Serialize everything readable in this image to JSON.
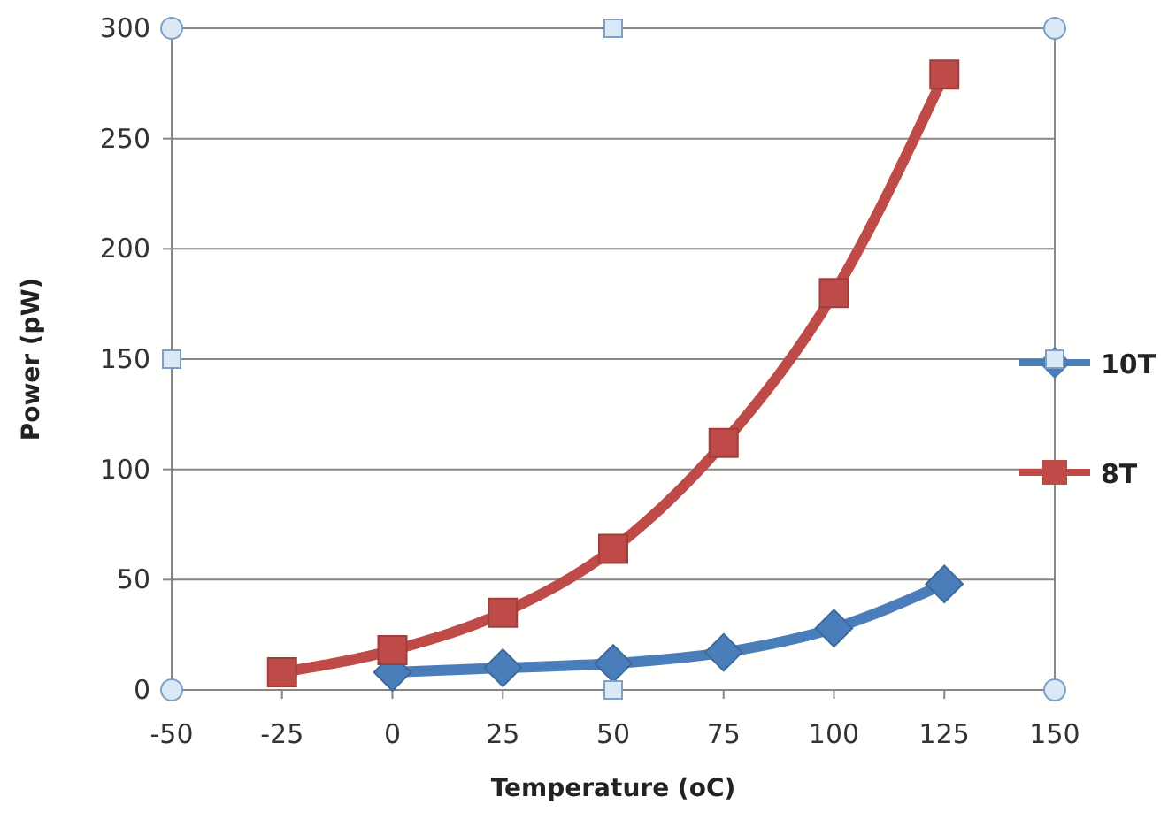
{
  "chart_data": {
    "type": "line",
    "xlabel": "Temperature (oC)",
    "ylabel": "Power (pW)",
    "x": [
      -25,
      0,
      25,
      50,
      75,
      100,
      125
    ],
    "series": [
      {
        "name": "10T",
        "color": "#4a7ebb",
        "marker": "diamond",
        "values": [
          null,
          8,
          10,
          12,
          17,
          28,
          48
        ]
      },
      {
        "name": "8T",
        "color": "#be4b48",
        "marker": "square",
        "values": [
          8,
          18,
          35,
          64,
          112,
          180,
          279
        ]
      }
    ],
    "xlim": [
      -50,
      150
    ],
    "xticks": [
      -50,
      -25,
      0,
      25,
      50,
      75,
      100,
      125,
      150
    ],
    "ylim": [
      0,
      300
    ],
    "yticks": [
      0,
      50,
      100,
      150,
      200,
      250,
      300
    ],
    "grid": "y",
    "legend": "right",
    "line_style": "solid"
  }
}
